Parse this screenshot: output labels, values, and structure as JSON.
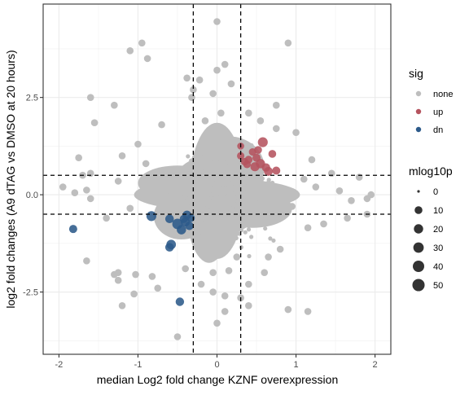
{
  "chart_data": {
    "type": "scatter",
    "xlabel": "median Log2 fold change KZNF overexpression",
    "ylabel": "log2 fold changes (A9 dTAG vs DMSO at 20 hours)",
    "xlim": [
      -2.2,
      2.2
    ],
    "ylim": [
      -4.1,
      4.9
    ],
    "x_ticks": [
      -2,
      -1,
      0,
      1,
      2
    ],
    "x_tick_labels": [
      "-2",
      "-1",
      "0",
      "1",
      "2"
    ],
    "y_ticks": [
      -2.5,
      0,
      2.5
    ],
    "y_tick_labels": [
      "-2.5",
      "0.0",
      "2.5"
    ],
    "grid": true,
    "threshold_lines": {
      "vertical": [
        -0.3,
        0.3
      ],
      "horizontal": [
        -0.5,
        0.5
      ],
      "style": "dashed"
    },
    "colors": {
      "none": "#bebebe",
      "up": "#b5535e",
      "dn": "#2c5a8a",
      "size_key": "#333333"
    },
    "legend": {
      "position": "right",
      "sig": {
        "title": "sig",
        "entries": [
          "none",
          "up",
          "dn"
        ]
      },
      "size": {
        "title": "mlog10p",
        "values": [
          0,
          10,
          20,
          30,
          40,
          50
        ]
      }
    },
    "series": [
      {
        "name": "up",
        "points": [
          [
            0.3,
            1.25,
            6
          ],
          [
            0.45,
            1.1,
            8
          ],
          [
            0.58,
            1.35,
            25
          ],
          [
            0.7,
            1.05,
            10
          ],
          [
            0.5,
            0.95,
            12
          ],
          [
            0.55,
            0.8,
            20
          ],
          [
            0.62,
            0.7,
            14
          ],
          [
            0.4,
            0.9,
            10
          ],
          [
            0.35,
            0.85,
            8
          ],
          [
            0.65,
            0.6,
            16
          ],
          [
            0.75,
            0.62,
            12
          ],
          [
            0.48,
            0.72,
            18
          ],
          [
            0.3,
            1.0,
            8
          ],
          [
            0.52,
            1.15,
            10
          ],
          [
            0.38,
            0.78,
            9
          ]
        ]
      },
      {
        "name": "dn",
        "points": [
          [
            -1.82,
            -0.88,
            12
          ],
          [
            -0.83,
            -0.55,
            25
          ],
          [
            -0.6,
            -0.62,
            15
          ],
          [
            -0.5,
            -0.75,
            30
          ],
          [
            -0.4,
            -0.7,
            18
          ],
          [
            -0.38,
            -0.52,
            16
          ],
          [
            -0.35,
            -0.8,
            14
          ],
          [
            -0.45,
            -0.9,
            20
          ],
          [
            -0.58,
            -1.28,
            22
          ],
          [
            -0.6,
            -1.35,
            15
          ],
          [
            -0.47,
            -2.75,
            14
          ],
          [
            -0.33,
            -0.6,
            10
          ],
          [
            -0.42,
            -0.62,
            12
          ]
        ]
      },
      {
        "name": "none",
        "points": [
          [
            0.0,
            4.45,
            6
          ],
          [
            -0.95,
            3.9,
            6
          ],
          [
            -1.1,
            3.7,
            6
          ],
          [
            -0.88,
            3.5,
            6
          ],
          [
            0.9,
            3.9,
            6
          ],
          [
            0.0,
            3.2,
            6
          ],
          [
            0.1,
            3.35,
            6
          ],
          [
            -0.22,
            2.95,
            6
          ],
          [
            -0.3,
            2.7,
            6
          ],
          [
            -0.38,
            3.0,
            6
          ],
          [
            0.18,
            2.85,
            6
          ],
          [
            -1.6,
            2.5,
            6
          ],
          [
            -1.3,
            2.3,
            6
          ],
          [
            -1.55,
            1.85,
            6
          ],
          [
            -0.32,
            2.5,
            6
          ],
          [
            -1.75,
            0.95,
            6
          ],
          [
            -1.7,
            0.5,
            6
          ],
          [
            -1.6,
            0.55,
            6
          ],
          [
            -1.95,
            0.2,
            6
          ],
          [
            -1.65,
            0.12,
            6
          ],
          [
            -1.6,
            -0.1,
            6
          ],
          [
            -1.8,
            0.05,
            6
          ],
          [
            1.95,
            0.0,
            6
          ],
          [
            1.9,
            -0.1,
            6
          ],
          [
            1.55,
            0.1,
            6
          ],
          [
            1.7,
            -0.15,
            6
          ],
          [
            1.45,
            0.55,
            6
          ],
          [
            1.8,
            0.45,
            6
          ],
          [
            1.9,
            -0.5,
            6
          ],
          [
            1.65,
            -0.6,
            6
          ],
          [
            1.15,
            -0.85,
            6
          ],
          [
            1.35,
            -0.75,
            6
          ],
          [
            1.0,
            1.6,
            6
          ],
          [
            0.75,
            1.7,
            6
          ],
          [
            0.55,
            1.9,
            6
          ],
          [
            -1.65,
            -1.7,
            6
          ],
          [
            -1.25,
            -2.0,
            6
          ],
          [
            -1.3,
            -2.05,
            6
          ],
          [
            -1.25,
            -2.2,
            6
          ],
          [
            -1.03,
            -2.05,
            6
          ],
          [
            -0.82,
            -2.1,
            6
          ],
          [
            -0.75,
            -2.4,
            6
          ],
          [
            -1.05,
            -2.55,
            6
          ],
          [
            -1.2,
            -2.85,
            6
          ],
          [
            0.1,
            -2.6,
            6
          ],
          [
            -0.05,
            -2.5,
            6
          ],
          [
            0.1,
            -3.0,
            6
          ],
          [
            0.0,
            -3.3,
            6
          ],
          [
            0.3,
            -2.65,
            6
          ],
          [
            0.4,
            -2.85,
            6
          ],
          [
            0.9,
            -2.95,
            6
          ],
          [
            1.15,
            -3.0,
            6
          ],
          [
            -0.5,
            -3.65,
            6
          ],
          [
            0.4,
            -2.3,
            6
          ],
          [
            -0.2,
            -2.3,
            6
          ],
          [
            0.6,
            -2.0,
            6
          ],
          [
            0.15,
            -1.95,
            6
          ],
          [
            0.65,
            -1.6,
            6
          ],
          [
            0.8,
            -1.4,
            6
          ],
          [
            -0.05,
            2.6,
            6
          ],
          [
            -0.15,
            1.9,
            6
          ],
          [
            0.05,
            2.1,
            6
          ],
          [
            0.4,
            2.1,
            6
          ],
          [
            -0.7,
            1.8,
            6
          ],
          [
            -1.2,
            1.0,
            6
          ],
          [
            -1.0,
            1.3,
            6
          ],
          [
            -0.9,
            0.8,
            6
          ],
          [
            1.2,
            0.9,
            6
          ],
          [
            1.1,
            0.4,
            6
          ],
          [
            0.95,
            -0.3,
            6
          ],
          [
            1.25,
            0.2,
            6
          ],
          [
            -1.4,
            -0.6,
            6
          ],
          [
            -1.1,
            -0.35,
            6
          ],
          [
            -1.25,
            0.35,
            6
          ],
          [
            0.75,
            2.3,
            6
          ],
          [
            -0.05,
            -2.0,
            6
          ],
          [
            0.25,
            -1.6,
            6
          ],
          [
            -0.4,
            -1.9,
            6
          ]
        ]
      }
    ]
  }
}
